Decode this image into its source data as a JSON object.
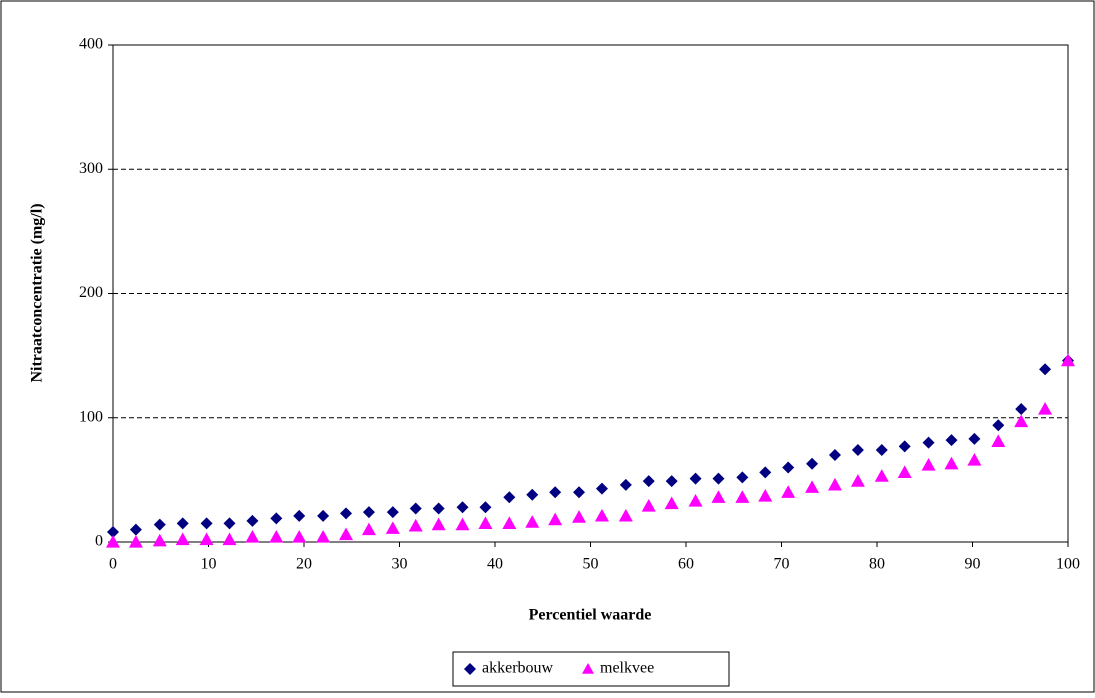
{
  "chart_data": {
    "type": "scatter",
    "x_label": "Percentiel waarde",
    "y_label": "Nitraatconcentratie (mg/l)",
    "x": [
      0,
      2.4,
      4.9,
      7.3,
      9.8,
      12.2,
      14.6,
      17.1,
      19.5,
      22,
      24.4,
      26.8,
      29.3,
      31.7,
      34.1,
      36.6,
      39,
      41.5,
      43.9,
      46.3,
      48.8,
      51.2,
      53.7,
      56.1,
      58.5,
      61,
      63.4,
      65.9,
      68.3,
      70.7,
      73.2,
      75.6,
      78,
      80.5,
      82.9,
      85.4,
      87.8,
      90.2,
      92.7,
      95.1,
      97.6,
      100
    ],
    "series": [
      {
        "name": "akkerbouw",
        "color": "#000080",
        "marker": "diamond",
        "values": [
          8,
          10,
          14,
          15,
          15,
          15,
          17,
          19,
          21,
          21,
          23,
          24,
          24,
          27,
          27,
          28,
          28,
          36,
          38,
          40,
          40,
          43,
          46,
          49,
          49,
          51,
          51,
          52,
          56,
          60,
          63,
          70,
          74,
          74,
          77,
          80,
          82,
          83,
          94,
          107,
          139,
          146
        ]
      },
      {
        "name": "melkvee",
        "color": "#ff00ff",
        "marker": "triangle",
        "values": [
          0,
          0,
          1,
          2,
          2,
          2,
          4,
          4,
          4,
          4,
          6,
          10,
          11,
          13,
          14,
          14,
          15,
          15,
          16,
          18,
          20,
          21,
          21,
          29,
          31,
          33,
          36,
          36,
          37,
          40,
          44,
          46,
          49,
          53,
          56,
          62,
          63,
          66,
          81,
          97,
          107,
          146
        ]
      }
    ],
    "xlim": [
      0,
      100
    ],
    "xticks": [
      0,
      10,
      20,
      30,
      40,
      50,
      60,
      70,
      80,
      90,
      100
    ],
    "ylim": [
      0,
      400
    ],
    "yticks": [
      0,
      100,
      200,
      300,
      400
    ],
    "grid": true,
    "legend": "bottom"
  }
}
